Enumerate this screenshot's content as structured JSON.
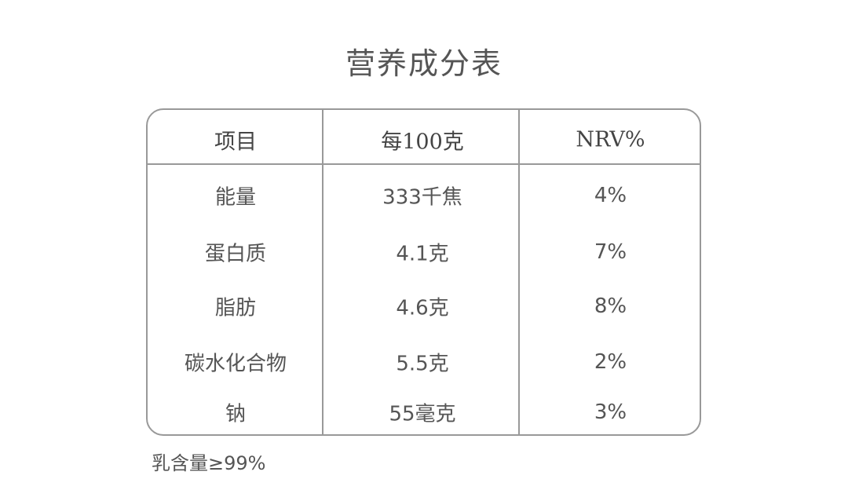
{
  "title": "营养成分表",
  "table": {
    "headers": [
      "项目",
      "每100克",
      "NRV%"
    ],
    "rows": [
      [
        "能量",
        "333千焦",
        "4%"
      ],
      [
        "蛋白质",
        "4.1克",
        "7%"
      ],
      [
        "脂肪",
        "4.6克",
        "8%"
      ],
      [
        "碳水化合物",
        "5.5克",
        "2%"
      ],
      [
        "钠",
        "55毫克",
        "3%"
      ]
    ]
  },
  "note": "乳含量≥99%",
  "colors": {
    "border": "#999999",
    "text": "#555555"
  }
}
